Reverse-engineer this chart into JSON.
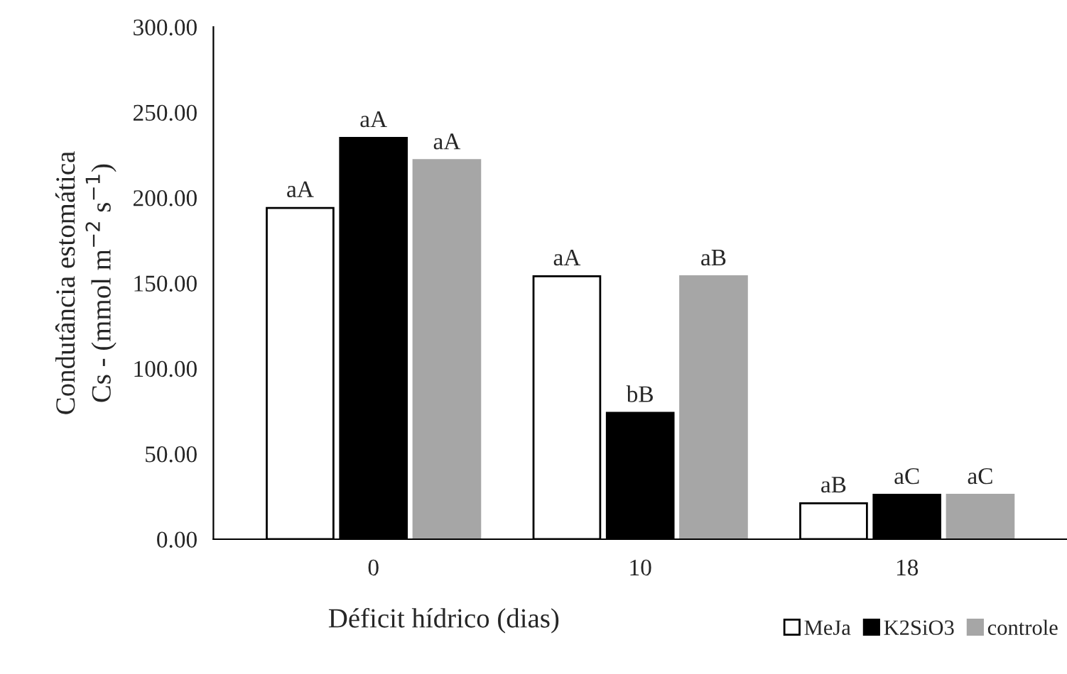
{
  "chart_data": {
    "type": "bar",
    "xlabel": "Déficit hídrico (dias)",
    "ylabel": "Condutância estomática\nCs - (mmol m$^{−2}$ s$^{−1}$)",
    "categories": [
      "0",
      "10",
      "18"
    ],
    "series": [
      {
        "name": "MeJa",
        "color": "#ffffff",
        "values": [
          194,
          154,
          21
        ],
        "value_labels": [
          "aA",
          "aA",
          "aB"
        ]
      },
      {
        "name": "K2SiO3",
        "color": "#000000",
        "values": [
          235,
          74,
          26
        ],
        "value_labels": [
          "aA",
          "bB",
          "aC"
        ]
      },
      {
        "name": "controle",
        "color": "#a6a6a6",
        "values": [
          222,
          154,
          26
        ],
        "value_labels": [
          "aA",
          "aB",
          "aC"
        ]
      }
    ],
    "ylim": [
      0,
      300
    ],
    "yticks": [
      {
        "value": 0,
        "label": "0.00"
      },
      {
        "value": 50,
        "label": "50.00"
      },
      {
        "value": 100,
        "label": "100.00"
      },
      {
        "value": 150,
        "label": "150.00"
      },
      {
        "value": 200,
        "label": "200.00"
      },
      {
        "value": 250,
        "label": "250.00"
      },
      {
        "value": 300,
        "label": "300.00"
      }
    ],
    "grid": false,
    "legend": "bottom right"
  }
}
